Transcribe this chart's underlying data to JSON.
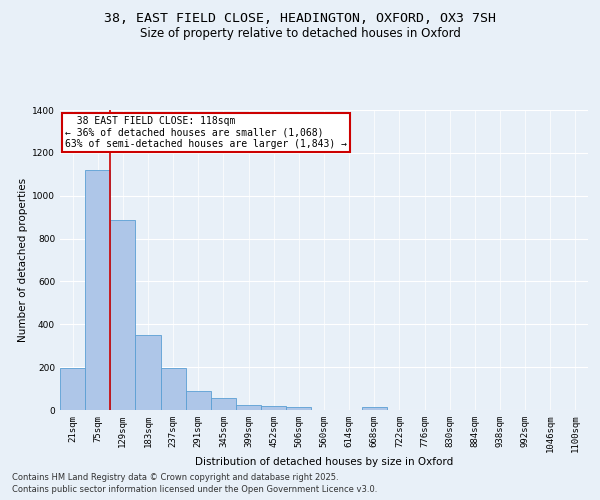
{
  "title_line1": "38, EAST FIELD CLOSE, HEADINGTON, OXFORD, OX3 7SH",
  "title_line2": "Size of property relative to detached houses in Oxford",
  "xlabel": "Distribution of detached houses by size in Oxford",
  "ylabel": "Number of detached properties",
  "categories": [
    "21sqm",
    "75sqm",
    "129sqm",
    "183sqm",
    "237sqm",
    "291sqm",
    "345sqm",
    "399sqm",
    "452sqm",
    "506sqm",
    "560sqm",
    "614sqm",
    "668sqm",
    "722sqm",
    "776sqm",
    "830sqm",
    "884sqm",
    "938sqm",
    "992sqm",
    "1046sqm",
    "1100sqm"
  ],
  "bar_heights": [
    195,
    1120,
    885,
    350,
    195,
    90,
    55,
    22,
    20,
    15,
    0,
    0,
    12,
    0,
    0,
    0,
    0,
    0,
    0,
    0,
    0
  ],
  "bar_color": "#aec6e8",
  "bar_edge_color": "#5a9fd4",
  "vline_color": "#cc0000",
  "annotation_text": "  38 EAST FIELD CLOSE: 118sqm\n← 36% of detached houses are smaller (1,068)\n63% of semi-detached houses are larger (1,843) →",
  "annotation_box_color": "#ffffff",
  "annotation_box_edge": "#cc0000",
  "ylim": [
    0,
    1400
  ],
  "yticks": [
    0,
    200,
    400,
    600,
    800,
    1000,
    1200,
    1400
  ],
  "footer_line1": "Contains HM Land Registry data © Crown copyright and database right 2025.",
  "footer_line2": "Contains public sector information licensed under the Open Government Licence v3.0.",
  "bg_color": "#e8f0f8",
  "plot_bg_color": "#e8f0f8",
  "grid_color": "#ffffff",
  "title_fontsize": 9.5,
  "subtitle_fontsize": 8.5,
  "axis_label_fontsize": 7.5,
  "tick_fontsize": 6.5,
  "annotation_fontsize": 7,
  "footer_fontsize": 6
}
